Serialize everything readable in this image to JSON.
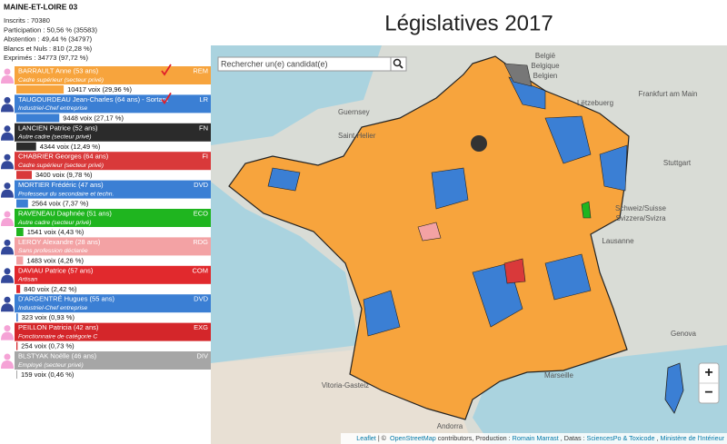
{
  "panel": {
    "title": "MAINE-ET-LOIRE 03",
    "stats": [
      "Inscrits : 70380",
      "Participation : 50,56 % (35583)",
      "Abstention : 49,44 % (34797)",
      "Blancs et Nuls : 810 (2,28 %)",
      "Exprimés : 34773 (97,72 %)"
    ],
    "candidates": [
      {
        "name": "BARRAULT Anne (53 ans)",
        "party": "REM",
        "job": "Cadre supérieur (secteur privé)",
        "votes": 10417,
        "votes_label": "10417 voix (29,96 %)",
        "color": "#f7a43d",
        "gender": "f",
        "qualified": true
      },
      {
        "name": "TAUGOURDEAU Jean-Charles (64 ans) - Sortant",
        "party": "LR",
        "job": "Industriel-Chef entreprise",
        "votes": 9448,
        "votes_label": "9448 voix (27,17 %)",
        "color": "#3b7fd4",
        "gender": "m",
        "qualified": true
      },
      {
        "name": "LANCIEN Patrice (52 ans)",
        "party": "FN",
        "job": "Autre cadre (secteur privé)",
        "votes": 4344,
        "votes_label": "4344 voix (12,49 %)",
        "color": "#2b2b2b",
        "gender": "m",
        "qualified": false
      },
      {
        "name": "CHABRIER Georges (64 ans)",
        "party": "FI",
        "job": "Cadre supérieur (secteur privé)",
        "votes": 3400,
        "votes_label": "3400 voix (9,78 %)",
        "color": "#d9393a",
        "gender": "m",
        "qualified": false
      },
      {
        "name": "MORTIER Frédéric (47 ans)",
        "party": "DVD",
        "job": "Professeur du secondaire et techn.",
        "votes": 2564,
        "votes_label": "2564 voix (7,37 %)",
        "color": "#3b7fd4",
        "gender": "m",
        "qualified": false
      },
      {
        "name": "RAVENEAU Daphnée (51 ans)",
        "party": "ECO",
        "job": "Autre cadre (secteur privé)",
        "votes": 1541,
        "votes_label": "1541 voix (4,43 %)",
        "color": "#1fb51f",
        "gender": "f",
        "qualified": false
      },
      {
        "name": "LEROY Alexandre (28 ans)",
        "party": "RDG",
        "job": "Sans profession déclarée",
        "votes": 1483,
        "votes_label": "1483 voix (4,26 %)",
        "color": "#f3a2a4",
        "gender": "m",
        "qualified": false
      },
      {
        "name": "DAVIAU Patrice (57 ans)",
        "party": "COM",
        "job": "Artisan",
        "votes": 840,
        "votes_label": "840 voix (2,42 %)",
        "color": "#e1292d",
        "gender": "m",
        "qualified": false
      },
      {
        "name": "D'ARGENTRÉ Hugues (55 ans)",
        "party": "DVD",
        "job": "Industriel-Chef entreprise",
        "votes": 323,
        "votes_label": "323 voix (0,93 %)",
        "color": "#3b7fd4",
        "gender": "m",
        "qualified": false
      },
      {
        "name": "PEILLON Patricia (42 ans)",
        "party": "EXG",
        "job": "Fonctionnaire de catégorie C",
        "votes": 254,
        "votes_label": "254 voix (0,73 %)",
        "color": "#d4262a",
        "gender": "f",
        "qualified": false
      },
      {
        "name": "BLSTYAK Noëlle (46 ans)",
        "party": "DIV",
        "job": "Employé (secteur privé)",
        "votes": 159,
        "votes_label": "159 voix (0,46 %)",
        "color": "#a6a6a6",
        "gender": "f",
        "qualified": false
      }
    ]
  },
  "map": {
    "title": "Législatives 2017",
    "search_placeholder": "Rechercher un(e) candidat(e)",
    "zoom_in": "+",
    "zoom_out": "−",
    "labels": [
      "Guernsey",
      "Saint Helier",
      "België",
      "Belgique",
      "Belgien",
      "Frankfurt am Main",
      "Lëtzebuerg",
      "Stuttgart",
      "Schweiz/Suisse",
      "Svizzera/Svizra",
      "Lausanne",
      "Genova",
      "Marseille",
      "Vitoria-Gasteiz",
      "Andorra"
    ],
    "attribution": [
      {
        "text": "Leaflet",
        "link": true
      },
      {
        "text": "| © ",
        "link": false
      },
      {
        "text": "OpenStreetMap",
        "link": true
      },
      {
        "text": "contributors, Production :",
        "link": false
      },
      {
        "text": "Romain Marrast",
        "link": true
      },
      {
        "text": ", Datas :",
        "link": false
      },
      {
        "text": "SciencesPo & Toxicode",
        "link": true
      },
      {
        "text": ",",
        "link": false
      },
      {
        "text": "Ministère de l'Intérieur",
        "link": true
      }
    ]
  }
}
